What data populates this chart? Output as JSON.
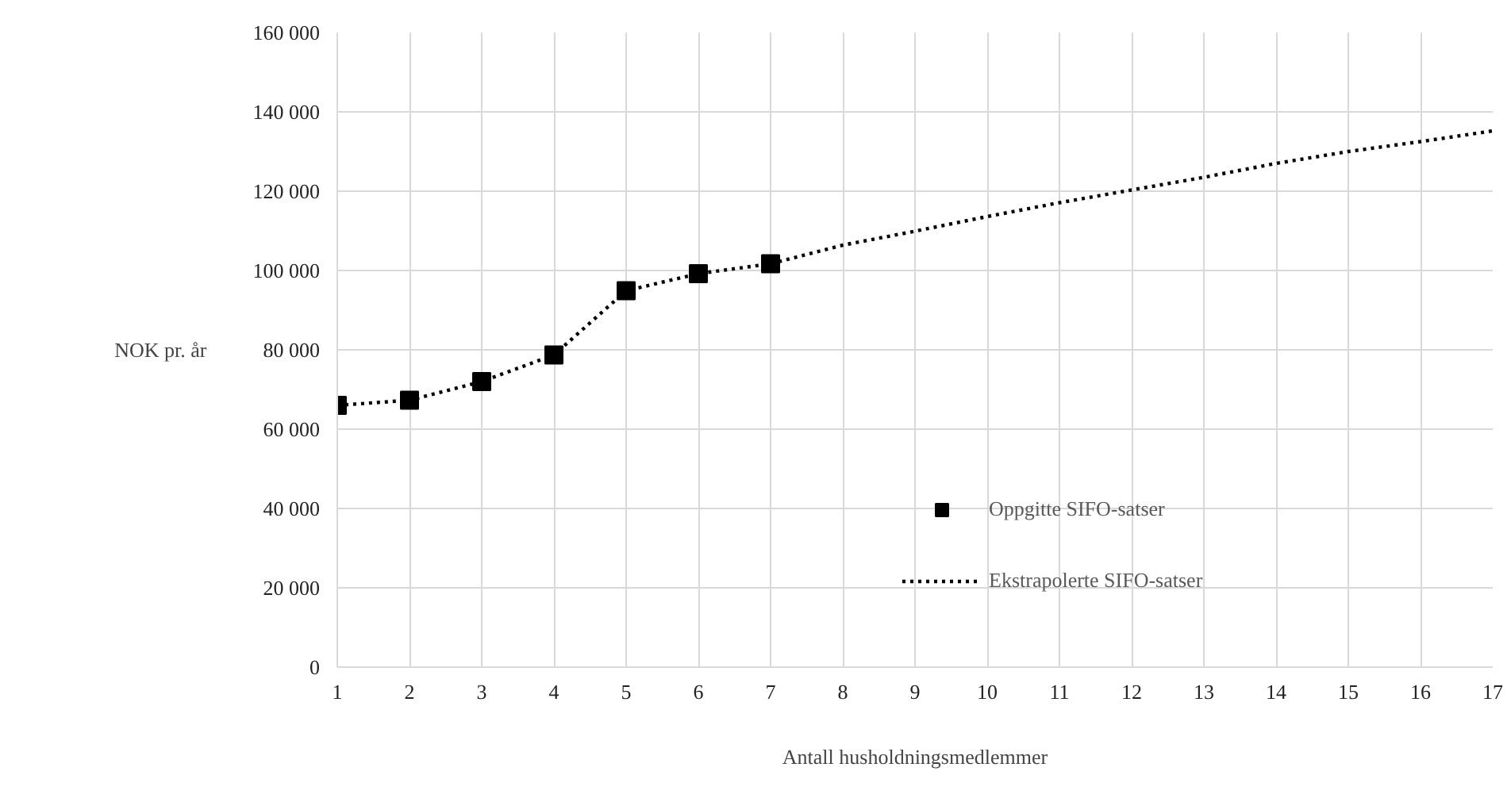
{
  "chart_data": {
    "type": "line",
    "xlabel": "Antall husholdningsmedlemmer",
    "ylabel": "NOK pr. år",
    "xlim": [
      1,
      17
    ],
    "xticks": [
      1,
      2,
      3,
      4,
      5,
      6,
      7,
      8,
      9,
      10,
      11,
      12,
      13,
      14,
      15,
      16,
      17
    ],
    "ylim": [
      0,
      160000
    ],
    "yticks": [
      {
        "value": 0,
        "label": "0"
      },
      {
        "value": 20000,
        "label": "20 000"
      },
      {
        "value": 40000,
        "label": "40 000"
      },
      {
        "value": 60000,
        "label": "60 000"
      },
      {
        "value": 80000,
        "label": "80 000"
      },
      {
        "value": 100000,
        "label": "100 000"
      },
      {
        "value": 120000,
        "label": "120 000"
      },
      {
        "value": 140000,
        "label": "140 000"
      },
      {
        "value": 160000,
        "label": "160 000"
      }
    ],
    "grid": true,
    "legend": "bottom",
    "series": [
      {
        "name": "Oppgitte SIFO-satser",
        "type": "scatter",
        "marker": "square",
        "color": "#000000",
        "x": [
          1,
          2,
          3,
          4,
          5,
          6,
          7
        ],
        "values": [
          66000,
          67300,
          72000,
          78700,
          94900,
          99200,
          101700
        ]
      },
      {
        "name": "Ekstrapolerte SIFO-satser",
        "line_style": "dotted",
        "marker": "none",
        "color": "#000000",
        "x": [
          1,
          2,
          3,
          4,
          5,
          6,
          7,
          8,
          9,
          10,
          11,
          12,
          13,
          14,
          15,
          16,
          17
        ],
        "values": [
          66000,
          67300,
          72000,
          78700,
          94900,
          99200,
          101700,
          106400,
          109900,
          113600,
          117100,
          120300,
          123500,
          127000,
          130000,
          132500,
          135200
        ]
      }
    ]
  }
}
